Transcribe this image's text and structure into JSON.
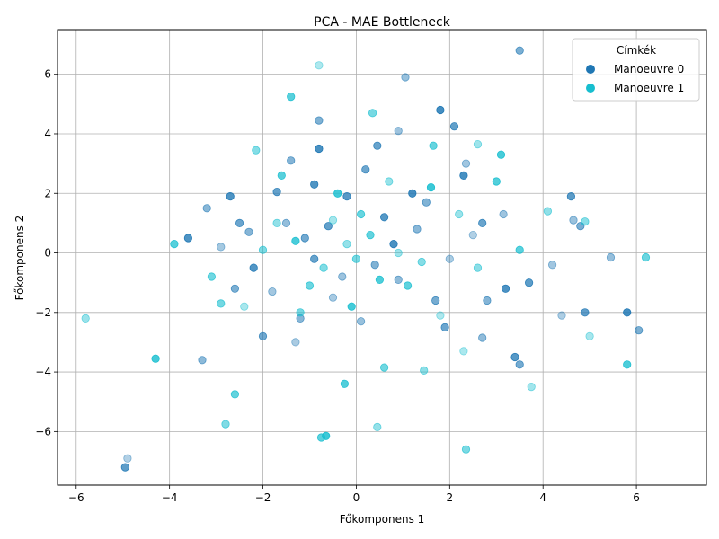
{
  "chart_data": {
    "type": "scatter",
    "title": "PCA - MAE Bottleneck",
    "xlabel": "Főkomponens 1",
    "ylabel": "Főkomponens 2",
    "xlim": [
      -6.4,
      7.5
    ],
    "ylim": [
      -7.8,
      7.5
    ],
    "xticks": [
      -6,
      -4,
      -2,
      0,
      2,
      4,
      6
    ],
    "yticks": [
      -6,
      -4,
      -2,
      0,
      2,
      4,
      6
    ],
    "grid": true,
    "legend": {
      "title": "Címkék",
      "position": "top-right"
    },
    "series": [
      {
        "name": "Manoeuvre 0",
        "color": "#1f77b4",
        "points": [
          [
            -4.9,
            -6.9
          ],
          [
            -4.95,
            -7.2
          ],
          [
            3.5,
            6.8
          ],
          [
            1.05,
            5.9
          ],
          [
            1.8,
            4.8
          ],
          [
            2.1,
            4.25
          ],
          [
            -0.8,
            4.45
          ],
          [
            0.9,
            4.1
          ],
          [
            -0.8,
            3.5
          ],
          [
            0.45,
            3.6
          ],
          [
            -1.4,
            3.1
          ],
          [
            2.35,
            3.0
          ],
          [
            -2.7,
            1.9
          ],
          [
            -2.5,
            1.0
          ],
          [
            -3.2,
            1.5
          ],
          [
            -2.9,
            0.2
          ],
          [
            -2.2,
            -0.5
          ],
          [
            -2.0,
            -2.8
          ],
          [
            -3.3,
            -3.6
          ],
          [
            -1.3,
            -3.0
          ],
          [
            3.4,
            -3.5
          ],
          [
            3.5,
            -3.75
          ],
          [
            2.7,
            -2.85
          ],
          [
            4.4,
            -2.1
          ],
          [
            4.6,
            1.9
          ],
          [
            4.8,
            0.9
          ],
          [
            5.45,
            -0.15
          ],
          [
            5.8,
            -2.0
          ],
          [
            4.9,
            -2.0
          ],
          [
            6.05,
            -2.6
          ],
          [
            4.65,
            1.1
          ],
          [
            2.3,
            2.6
          ],
          [
            -1.7,
            2.05
          ],
          [
            1.5,
            1.7
          ],
          [
            3.15,
            1.3
          ],
          [
            3.2,
            -1.2
          ],
          [
            2.7,
            1.0
          ],
          [
            -2.3,
            0.7
          ],
          [
            -1.8,
            -1.3
          ],
          [
            -0.9,
            2.3
          ],
          [
            0.2,
            2.8
          ],
          [
            1.3,
            0.8
          ],
          [
            -0.5,
            -1.5
          ],
          [
            0.6,
            1.2
          ],
          [
            -1.1,
            0.5
          ],
          [
            0.9,
            -0.9
          ],
          [
            2.0,
            -0.2
          ],
          [
            -0.2,
            1.9
          ],
          [
            1.7,
            -1.6
          ],
          [
            -1.5,
            1.0
          ],
          [
            2.5,
            0.6
          ],
          [
            3.7,
            -1.0
          ],
          [
            -2.6,
            -1.2
          ],
          [
            0.1,
            -2.3
          ],
          [
            1.2,
            2.0
          ],
          [
            -0.6,
            0.9
          ],
          [
            0.4,
            -0.4
          ],
          [
            -0.3,
            -0.8
          ],
          [
            0.8,
            0.3
          ],
          [
            -0.9,
            -0.2
          ],
          [
            2.8,
            -1.6
          ],
          [
            4.2,
            -0.4
          ],
          [
            -3.6,
            0.5
          ],
          [
            1.9,
            -2.5
          ],
          [
            -1.2,
            -2.2
          ]
        ]
      },
      {
        "name": "Manoeuvre 1",
        "color": "#17becf",
        "points": [
          [
            -0.8,
            6.3
          ],
          [
            -1.4,
            5.25
          ],
          [
            0.35,
            4.7
          ],
          [
            0.45,
            -5.85
          ],
          [
            -0.65,
            -6.15
          ],
          [
            -0.75,
            -6.2
          ],
          [
            2.35,
            -6.6
          ],
          [
            -5.8,
            -2.2
          ],
          [
            -4.3,
            -3.55
          ],
          [
            -2.6,
            -4.75
          ],
          [
            -2.8,
            -5.75
          ],
          [
            2.6,
            3.65
          ],
          [
            3.1,
            3.3
          ],
          [
            1.65,
            3.6
          ],
          [
            -2.15,
            3.45
          ],
          [
            3.75,
            -4.5
          ],
          [
            5.8,
            -3.75
          ],
          [
            6.2,
            -0.15
          ],
          [
            4.9,
            1.05
          ],
          [
            5.0,
            -2.8
          ],
          [
            -0.25,
            -4.4
          ],
          [
            0.6,
            -3.85
          ],
          [
            1.45,
            -3.95
          ],
          [
            2.3,
            -3.3
          ],
          [
            -3.9,
            0.3
          ],
          [
            -2.9,
            -1.7
          ],
          [
            -1.7,
            1.0
          ],
          [
            1.6,
            2.2
          ],
          [
            3.5,
            0.1
          ],
          [
            -1.2,
            -2.0
          ],
          [
            0.7,
            2.4
          ],
          [
            -0.4,
            2.0
          ],
          [
            1.1,
            -1.1
          ],
          [
            -2.0,
            0.1
          ],
          [
            2.2,
            1.3
          ],
          [
            -0.1,
            -1.8
          ],
          [
            0.3,
            0.6
          ],
          [
            -0.7,
            -0.5
          ],
          [
            0.9,
            0.0
          ],
          [
            -1.3,
            0.4
          ],
          [
            0.1,
            1.3
          ],
          [
            1.4,
            -0.3
          ],
          [
            -0.5,
            1.1
          ],
          [
            0.5,
            -0.9
          ],
          [
            -1.0,
            -1.1
          ],
          [
            2.6,
            -0.5
          ],
          [
            -2.4,
            -1.8
          ],
          [
            3.0,
            2.4
          ],
          [
            -3.1,
            -0.8
          ],
          [
            4.1,
            1.4
          ],
          [
            1.8,
            -2.1
          ],
          [
            -1.6,
            2.6
          ],
          [
            0.0,
            -0.2
          ],
          [
            -0.2,
            0.3
          ]
        ]
      }
    ]
  }
}
